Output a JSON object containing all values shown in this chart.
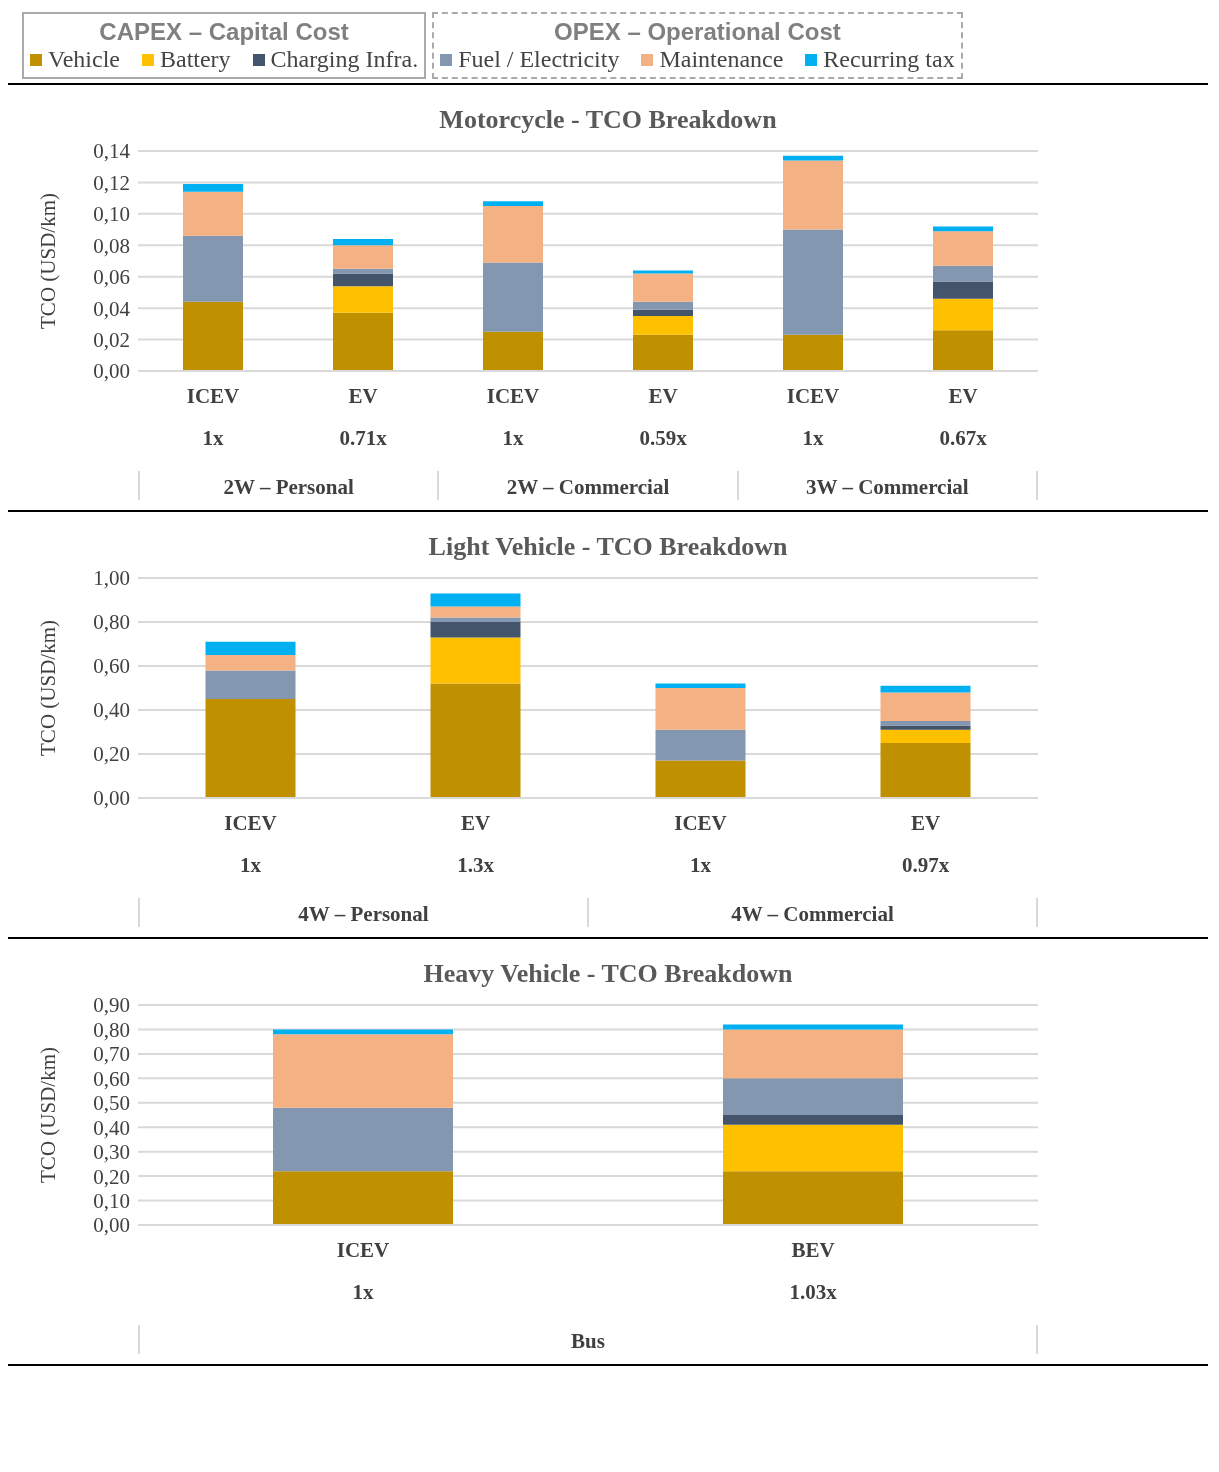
{
  "chart_data": [
    {
      "type": "bar",
      "stacked": true,
      "title": "Motorcycle - TCO Breakdown",
      "ylabel": "TCO (USD/km)",
      "legend": "top",
      "grid": "y",
      "categories": [
        "ICEV\n1x",
        "EV\n0.71x",
        "ICEV\n1x",
        "EV\n0.59x",
        "ICEV\n1x",
        "EV\n0.67x"
      ],
      "annotations": [
        "CAPEX – Capital Cost",
        "OPEX – Operational Cost",
        "2W – Personal",
        "2W – Commercial",
        "3W – Commercial"
      ],
      "ylim": [
        0,
        0.14
      ],
      "yticks": [
        {
          "value": 0,
          "label": "0,00"
        },
        {
          "value": 0.02,
          "label": "0,02"
        },
        {
          "value": 0.04,
          "label": "0,04"
        },
        {
          "value": 0.06,
          "label": "0,06"
        },
        {
          "value": 0.08,
          "label": "0,08"
        },
        {
          "value": 0.1,
          "label": "0,10"
        },
        {
          "value": 0.12,
          "label": "0,12"
        },
        {
          "value": 0.14,
          "label": "0,14"
        }
      ],
      "series": [
        {
          "name": "Vehicle",
          "color": "#bf9000",
          "values": [
            0.044,
            0.037,
            0.025,
            0.023,
            0.023,
            0.026
          ]
        },
        {
          "name": "Battery",
          "color": "#ffc000",
          "values": [
            0,
            0.017,
            0,
            0.012,
            0,
            0.02
          ]
        },
        {
          "name": "Charging Infra.",
          "color": "#44546a",
          "values": [
            0,
            0.008,
            0,
            0.004,
            0,
            0.011
          ]
        },
        {
          "name": "Fuel / Electricity",
          "color": "#8497b0",
          "values": [
            0.042,
            0.003,
            0.044,
            0.005,
            0.067,
            0.01
          ]
        },
        {
          "name": "Maintenance",
          "color": "#f4b183",
          "values": [
            0.028,
            0.015,
            0.036,
            0.018,
            0.044,
            0.022
          ]
        },
        {
          "name": "Recurring tax",
          "color": "#00b0f0",
          "values": [
            0.005,
            0.004,
            0.003,
            0.002,
            0.003,
            0.003
          ]
        }
      ]
    },
    {
      "type": "bar",
      "stacked": true,
      "title": "Light Vehicle - TCO Breakdown",
      "ylabel": "TCO (USD/km)",
      "grid": "y",
      "categories": [
        "ICEV\n1x",
        "EV\n1.3x",
        "ICEV\n1x",
        "EV\n0.97x"
      ],
      "annotations": [
        "4W – Personal",
        "4W – Commercial"
      ],
      "ylim": [
        0,
        1
      ],
      "yticks": [
        {
          "value": 0,
          "label": "0,00"
        },
        {
          "value": 0.2,
          "label": "0,20"
        },
        {
          "value": 0.4,
          "label": "0,40"
        },
        {
          "value": 0.6,
          "label": "0,60"
        },
        {
          "value": 0.8,
          "label": "0,80"
        },
        {
          "value": 1,
          "label": "1,00"
        }
      ],
      "series": [
        {
          "color": "#bf9000",
          "values": [
            0.45,
            0.52,
            0.17,
            0.25
          ]
        },
        {
          "color": "#ffc000",
          "values": [
            0,
            0.21,
            0,
            0.06
          ]
        },
        {
          "color": "#44546a",
          "values": [
            0,
            0.07,
            0,
            0.02
          ]
        },
        {
          "color": "#8497b0",
          "values": [
            0.13,
            0.02,
            0.14,
            0.02
          ]
        },
        {
          "color": "#f4b183",
          "values": [
            0.07,
            0.05,
            0.19,
            0.13
          ]
        },
        {
          "color": "#00b0f0",
          "values": [
            0.06,
            0.06,
            0.02,
            0.03
          ]
        }
      ]
    },
    {
      "type": "bar",
      "stacked": true,
      "title": "Heavy Vehicle - TCO Breakdown",
      "ylabel": "TCO (USD/km)",
      "grid": "y",
      "categories": [
        "ICEV\n1x",
        "BEV\n1.03x"
      ],
      "annotations": [
        "Bus"
      ],
      "ylim": [
        0,
        0.9
      ],
      "yticks": [
        {
          "value": 0,
          "label": "0,00"
        },
        {
          "value": 0.1,
          "label": "0,10"
        },
        {
          "value": 0.2,
          "label": "0,20"
        },
        {
          "value": 0.3,
          "label": "0,30"
        },
        {
          "value": 0.4,
          "label": "0,40"
        },
        {
          "value": 0.5,
          "label": "0,50"
        },
        {
          "value": 0.6,
          "label": "0,60"
        },
        {
          "value": 0.7,
          "label": "0,70"
        },
        {
          "value": 0.8,
          "label": "0,80"
        },
        {
          "value": 0.9,
          "label": "0,90"
        }
      ],
      "series": [
        {
          "color": "#bf9000",
          "values": [
            0.22,
            0.22
          ]
        },
        {
          "color": "#ffc000",
          "values": [
            0,
            0.19
          ]
        },
        {
          "color": "#44546a",
          "values": [
            0,
            0.04
          ]
        },
        {
          "color": "#8497b0",
          "values": [
            0.26,
            0.15
          ]
        },
        {
          "color": "#f4b183",
          "values": [
            0.3,
            0.2
          ]
        },
        {
          "color": "#00b0f0",
          "values": [
            0.02,
            0.02
          ]
        }
      ]
    }
  ]
}
